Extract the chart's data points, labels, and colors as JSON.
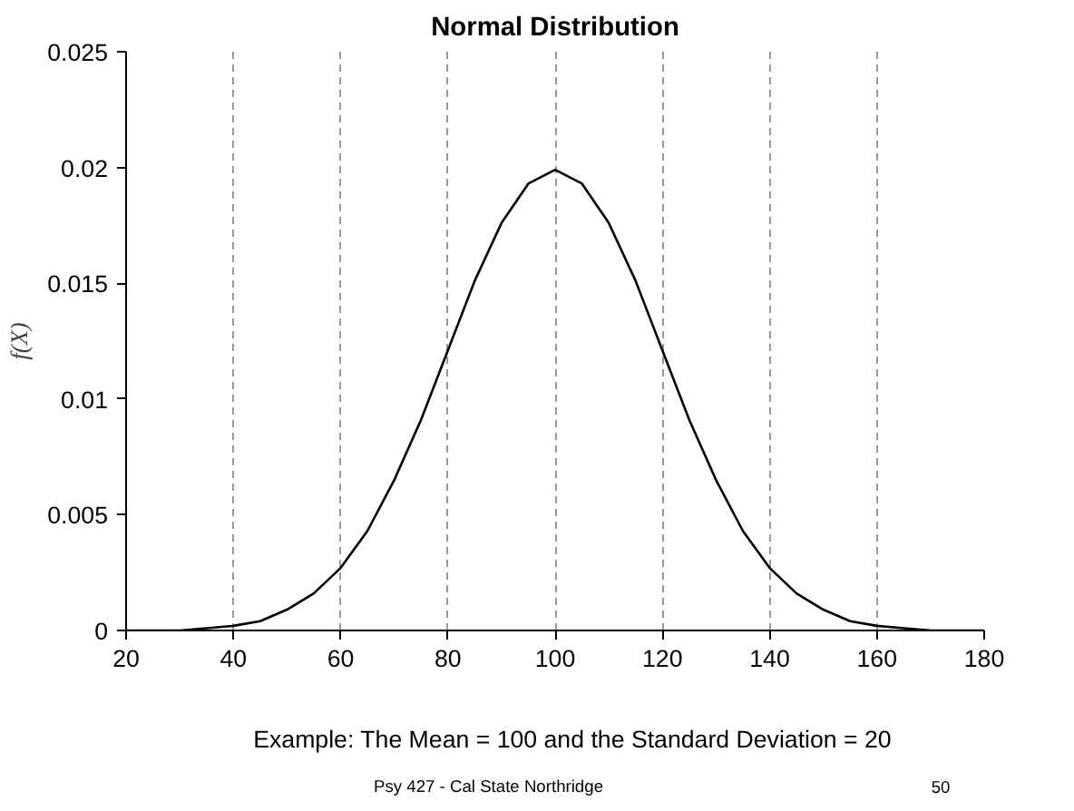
{
  "chart_data": {
    "type": "line",
    "title": "Normal Distribution",
    "ylabel": "f(X)",
    "x": [
      20,
      25,
      30,
      35,
      40,
      45,
      50,
      55,
      60,
      65,
      70,
      75,
      80,
      85,
      90,
      95,
      100,
      105,
      110,
      115,
      120,
      125,
      130,
      135,
      140,
      145,
      150,
      155,
      160,
      165,
      170,
      175,
      180
    ],
    "series": [
      {
        "color": "#000000",
        "values": [
          0,
          0,
          0,
          0.0001,
          0.0002,
          0.0004,
          0.0009,
          0.0016,
          0.0027,
          0.0043,
          0.0065,
          0.0091,
          0.0121,
          0.0151,
          0.0176,
          0.0193,
          0.0199,
          0.0193,
          0.0176,
          0.0151,
          0.0121,
          0.0091,
          0.0065,
          0.0043,
          0.0027,
          0.0016,
          0.0009,
          0.0004,
          0.0002,
          0.0001,
          0,
          0,
          0
        ]
      }
    ],
    "xlim": [
      20,
      180
    ],
    "xticks": [
      20,
      40,
      60,
      80,
      100,
      120,
      140,
      160,
      180
    ],
    "ylim": [
      0,
      0.025
    ],
    "yticks": [
      0,
      0.005,
      0.01,
      0.015,
      0.02,
      0.025
    ],
    "grid": "x",
    "marker": "none",
    "line_style": "solid",
    "annotations": [
      "Example: The Mean = 100 and the Standard Deviation = 20",
      "Psy 427 - Cal State Northridge",
      "50"
    ]
  }
}
